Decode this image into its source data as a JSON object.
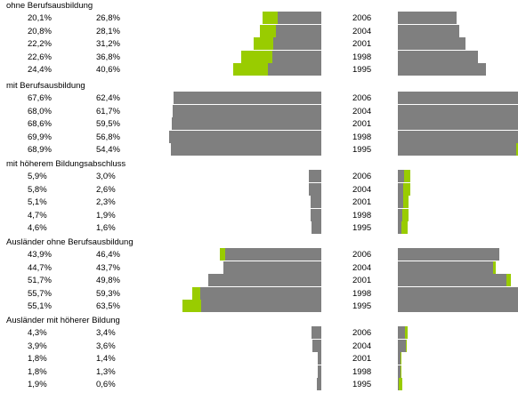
{
  "chart_data": {
    "type": "bar",
    "years": [
      "2006",
      "2004",
      "2001",
      "1998",
      "1995"
    ],
    "colors": {
      "grey": "#7f7f7f",
      "green": "#99cc00"
    },
    "groups": [
      {
        "title": "ohne Berufsausbildung",
        "col1": [
          "20,1%",
          "20,8%",
          "22,2%",
          "22,6%",
          "24,4%"
        ],
        "col2": [
          "26,8%",
          "28,1%",
          "31,2%",
          "36,8%",
          "40,6%"
        ],
        "v1": [
          20.1,
          20.8,
          22.2,
          22.6,
          24.4
        ],
        "v2": [
          26.8,
          28.1,
          31.2,
          36.8,
          40.6
        ]
      },
      {
        "title": "mit Berufsausbildung",
        "col1": [
          "67,6%",
          "68,0%",
          "68,6%",
          "69,9%",
          "68,9%"
        ],
        "col2": [
          "62,4%",
          "61,7%",
          "59,5%",
          "56,8%",
          "54,4%"
        ],
        "v1": [
          67.6,
          68.0,
          68.6,
          69.9,
          68.9
        ],
        "v2": [
          62.4,
          61.7,
          59.5,
          56.8,
          54.4
        ]
      },
      {
        "title": "mit höherem Bildungsabschluss",
        "col1": [
          "5,9%",
          "5,8%",
          "5,1%",
          "4,7%",
          "4,6%"
        ],
        "col2": [
          "3,0%",
          "2,6%",
          "2,3%",
          "1,9%",
          "1,6%"
        ],
        "v1": [
          5.9,
          5.8,
          5.1,
          4.7,
          4.6
        ],
        "v2": [
          3.0,
          2.6,
          2.3,
          1.9,
          1.6
        ]
      },
      {
        "title": "Ausländer ohne Berufsausbildung",
        "col1": [
          "43,9%",
          "44,7%",
          "51,7%",
          "55,7%",
          "55,1%"
        ],
        "col2": [
          "46,4%",
          "43,7%",
          "49,8%",
          "59,3%",
          "63,5%"
        ],
        "v1": [
          43.9,
          44.7,
          51.7,
          55.7,
          55.1
        ],
        "v2": [
          46.4,
          43.7,
          49.8,
          59.3,
          63.5
        ]
      },
      {
        "title": "Ausländer mit höherer Bildung",
        "col1": [
          "4,3%",
          "3,9%",
          "1,8%",
          "1,8%",
          "1,9%"
        ],
        "col2": [
          "3,4%",
          "3,6%",
          "1,4%",
          "1,3%",
          "0,6%"
        ],
        "v1": [
          4.3,
          3.9,
          1.8,
          1.8,
          1.9
        ],
        "v2": [
          3.4,
          3.6,
          1.4,
          1.3,
          0.6
        ]
      }
    ]
  }
}
